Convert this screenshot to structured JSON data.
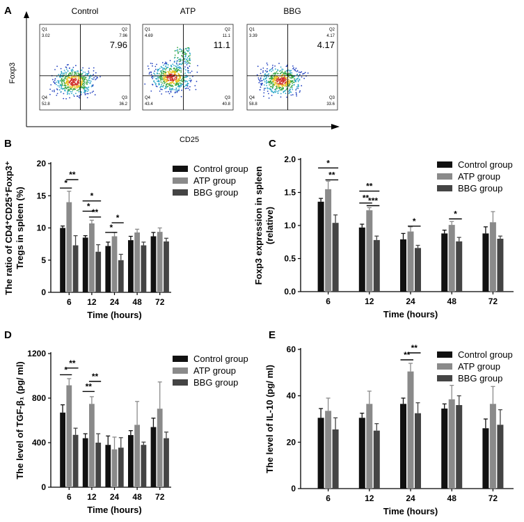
{
  "figure_labels": {
    "A": "A",
    "B": "B",
    "C": "C",
    "D": "D",
    "E": "E"
  },
  "colors": {
    "control": "#111111",
    "atp": "#8a8a8a",
    "bbg": "#444444"
  },
  "flow_panel": {
    "xlabel": "CD25",
    "ylabel": "Foxp3",
    "plots": [
      {
        "title": "Control",
        "q1_label": "Q1",
        "q1": "3.02",
        "q2_label": "Q2",
        "q2": "7.96",
        "big": "7.96",
        "q3_label": "Q3",
        "q3": "36.2",
        "q4_label": "Q4",
        "q4": "52.8"
      },
      {
        "title": "ATP",
        "q1_label": "Q1",
        "q1": "4.69",
        "q2_label": "Q2",
        "q2": "11.1",
        "big": "11.1",
        "q3_label": "Q3",
        "q3": "40.8",
        "q4_label": "Q4",
        "q4": "43.4"
      },
      {
        "title": "BBG",
        "q1_label": "Q1",
        "q1": "3.39",
        "q2_label": "Q2",
        "q2": "4.17",
        "big": "4.17",
        "q3_label": "Q3",
        "q3": "33.6",
        "q4_label": "Q4",
        "q4": "58.8"
      }
    ]
  },
  "chart_data": [
    {
      "panel": "B",
      "type": "bar",
      "title": "",
      "xlabel": "Time (hours)",
      "ylabel_lines": [
        "The ratio of CD4⁺CD25⁺Foxp3⁺",
        "Tregs in spleen (%)"
      ],
      "categories": [
        "6",
        "12",
        "24",
        "48",
        "72"
      ],
      "ylim": [
        0,
        20
      ],
      "yticks": [
        "0",
        "5",
        "10",
        "15",
        "20"
      ],
      "legend": [
        "Control group",
        "ATP group",
        "BBG group"
      ],
      "legend_position": "top-right",
      "series": [
        {
          "name": "Control group",
          "values": [
            10.0,
            8.5,
            7.2,
            8.1,
            8.7
          ],
          "errors": [
            0.3,
            0.3,
            0.6,
            0.6,
            0.6
          ]
        },
        {
          "name": "ATP group",
          "values": [
            14.0,
            10.7,
            8.7,
            9.3,
            9.4
          ],
          "errors": [
            1.7,
            0.5,
            0.6,
            0.5,
            0.6
          ]
        },
        {
          "name": "BBG group",
          "values": [
            7.3,
            6.3,
            5.0,
            7.3,
            7.9
          ],
          "errors": [
            1.5,
            1.1,
            0.9,
            0.5,
            0.5
          ]
        }
      ],
      "significance": [
        {
          "cat": 0,
          "from": 0,
          "to": 1,
          "y": 16.2,
          "text": "*"
        },
        {
          "cat": 0,
          "from": 1,
          "to": 2,
          "y": 17.5,
          "text": "**"
        },
        {
          "cat": 1,
          "from": 0,
          "to": 2,
          "y": 14.2,
          "text": "*"
        },
        {
          "cat": 1,
          "from": 0,
          "to": 1,
          "y": 12.6,
          "text": "*"
        },
        {
          "cat": 1,
          "from": 1,
          "to": 2,
          "y": 11.7,
          "text": "**"
        },
        {
          "cat": 2,
          "from": 0,
          "to": 1,
          "y": 9.3,
          "text": "*"
        },
        {
          "cat": 2,
          "from": 1,
          "to": 2,
          "y": 10.8,
          "text": "*"
        }
      ]
    },
    {
      "panel": "C",
      "type": "bar",
      "title": "",
      "xlabel": "Time (hours)",
      "ylabel_lines": [
        "Foxp3 expression in spleen",
        "(relative)"
      ],
      "categories": [
        "6",
        "12",
        "24",
        "48",
        "72"
      ],
      "ylim": [
        0,
        2.0
      ],
      "yticks": [
        "0.0",
        "0.5",
        "1.0",
        "1.5",
        "2.0"
      ],
      "legend": [
        "Control group",
        "ATP group",
        "BBG group"
      ],
      "legend_position": "top-right",
      "series": [
        {
          "name": "Control group",
          "values": [
            1.36,
            0.97,
            0.79,
            0.88,
            0.88
          ],
          "errors": [
            0.05,
            0.05,
            0.09,
            0.05,
            0.1
          ]
        },
        {
          "name": "ATP group",
          "values": [
            1.55,
            1.23,
            0.91,
            1.01,
            1.05
          ],
          "errors": [
            0.12,
            0.04,
            0.07,
            0.05,
            0.16
          ]
        },
        {
          "name": "BBG group",
          "values": [
            1.04,
            0.78,
            0.66,
            0.76,
            0.8
          ],
          "errors": [
            0.12,
            0.06,
            0.04,
            0.06,
            0.04
          ]
        }
      ],
      "significance": [
        {
          "cat": 0,
          "from": 0,
          "to": 2,
          "y": 1.87,
          "text": "*"
        },
        {
          "cat": 0,
          "from": 1,
          "to": 2,
          "y": 1.69,
          "text": "**"
        },
        {
          "cat": 1,
          "from": 0,
          "to": 2,
          "y": 1.52,
          "text": "**"
        },
        {
          "cat": 1,
          "from": 0,
          "to": 1,
          "y": 1.34,
          "text": "**"
        },
        {
          "cat": 1,
          "from": 1,
          "to": 2,
          "y": 1.3,
          "text": "***"
        },
        {
          "cat": 2,
          "from": 1,
          "to": 2,
          "y": 0.99,
          "text": "*"
        },
        {
          "cat": 3,
          "from": 1,
          "to": 2,
          "y": 1.1,
          "text": "*"
        }
      ]
    },
    {
      "panel": "D",
      "type": "bar",
      "title": "",
      "xlabel": "Time (hours)",
      "ylabel_lines": [
        "The level of TGF-β₁ (pg/ ml)"
      ],
      "categories": [
        "6",
        "12",
        "24",
        "48",
        "72"
      ],
      "ylim": [
        0,
        1200
      ],
      "yticks": [
        "0",
        "400",
        "800",
        "1200"
      ],
      "legend": [
        "Control group",
        "ATP group",
        "BBG group"
      ],
      "legend_position": "top-right",
      "series": [
        {
          "name": "Control group",
          "values": [
            670,
            440,
            380,
            468,
            540
          ],
          "errors": [
            70,
            40,
            80,
            40,
            80
          ]
        },
        {
          "name": "ATP group",
          "values": [
            915,
            748,
            340,
            560,
            705
          ],
          "errors": [
            60,
            65,
            110,
            210,
            240
          ]
        },
        {
          "name": "BBG group",
          "values": [
            470,
            400,
            355,
            380,
            440
          ],
          "errors": [
            60,
            80,
            90,
            25,
            55
          ]
        }
      ],
      "significance": [
        {
          "cat": 0,
          "from": 0,
          "to": 1,
          "y": 1010,
          "text": "*"
        },
        {
          "cat": 0,
          "from": 1,
          "to": 2,
          "y": 1070,
          "text": "**"
        },
        {
          "cat": 1,
          "from": 0,
          "to": 1,
          "y": 860,
          "text": "**"
        },
        {
          "cat": 1,
          "from": 1,
          "to": 2,
          "y": 950,
          "text": "**"
        }
      ]
    },
    {
      "panel": "E",
      "type": "bar",
      "title": "",
      "xlabel": "Time (hours)",
      "ylabel_lines": [
        "The level of IL-10 (pg/ ml)"
      ],
      "categories": [
        "6",
        "12",
        "24",
        "48",
        "72"
      ],
      "ylim": [
        0,
        60
      ],
      "yticks": [
        "0",
        "20",
        "40",
        "60"
      ],
      "legend": [
        "Control group",
        "ATP group",
        "BBG group"
      ],
      "legend_position": "top-right",
      "series": [
        {
          "name": "Control group",
          "values": [
            30.5,
            30.5,
            36.5,
            34.5,
            26.0
          ],
          "errors": [
            4.0,
            2.0,
            2.5,
            2.0,
            4.0
          ]
        },
        {
          "name": "ATP group",
          "values": [
            33.5,
            36.5,
            50.5,
            38.5,
            36.5
          ],
          "errors": [
            5.5,
            5.5,
            3.5,
            6.0,
            7.5
          ]
        },
        {
          "name": "BBG group",
          "values": [
            25.5,
            25.0,
            32.5,
            36.0,
            27.5
          ],
          "errors": [
            5.0,
            3.0,
            4.5,
            4.0,
            6.5
          ]
        }
      ],
      "significance": [
        {
          "cat": 2,
          "from": 0,
          "to": 1,
          "y": 55.5,
          "text": "**"
        },
        {
          "cat": 2,
          "from": 1,
          "to": 2,
          "y": 58.5,
          "text": "**"
        }
      ]
    }
  ]
}
